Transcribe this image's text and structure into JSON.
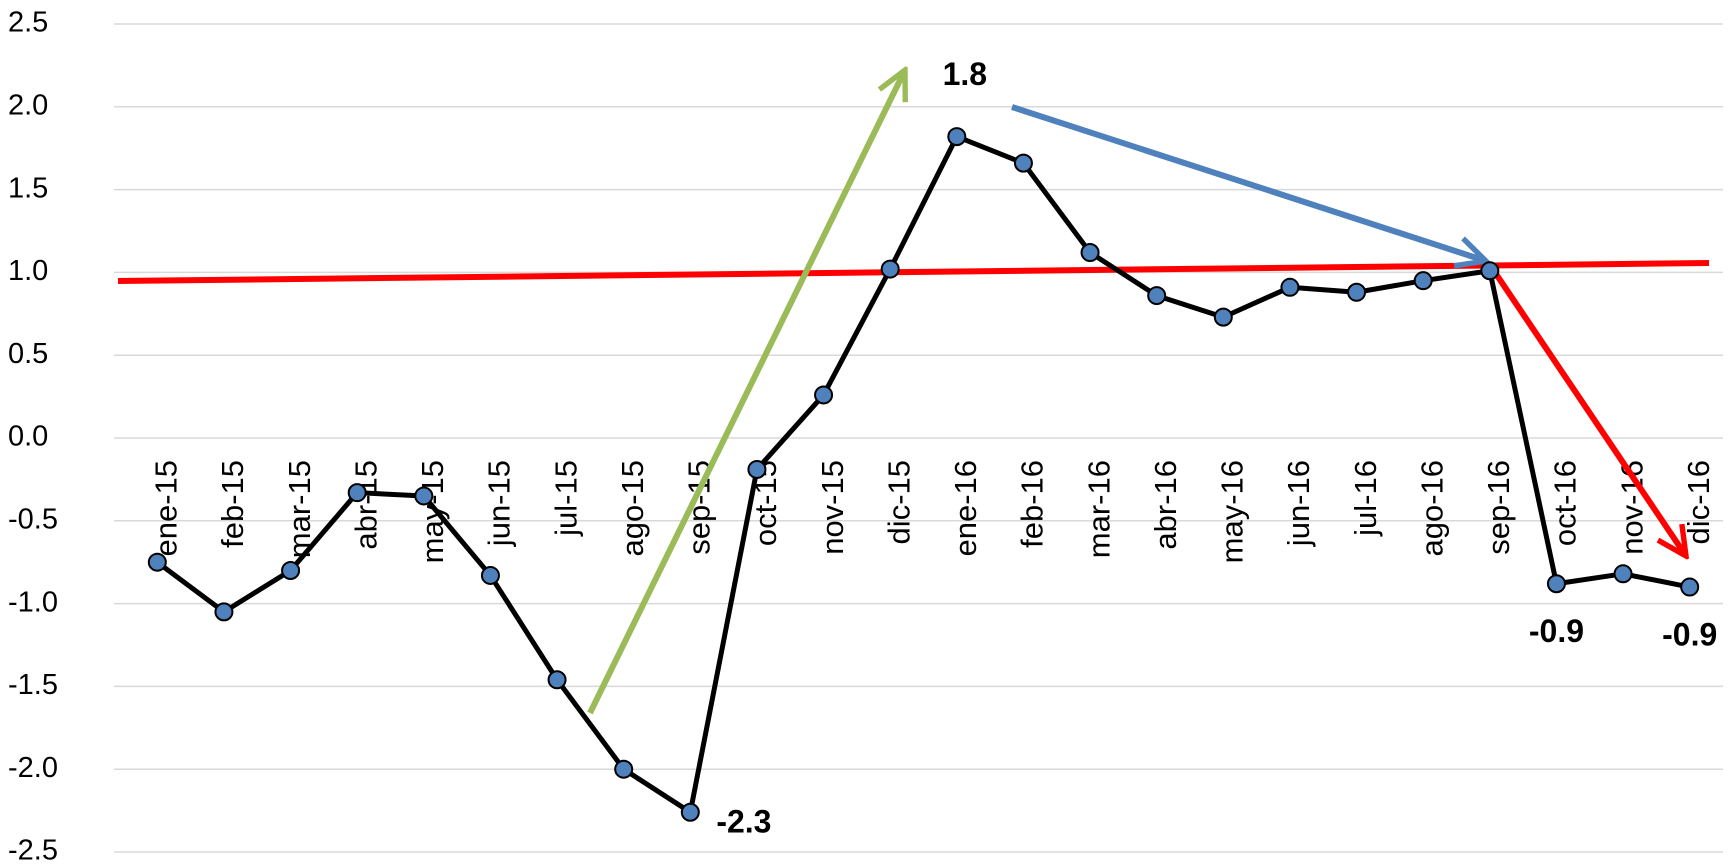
{
  "chart_data": {
    "type": "line",
    "categories": [
      "ene-15",
      "feb-15",
      "mar-15",
      "abr-15",
      "may-15",
      "jun-15",
      "jul-15",
      "ago-15",
      "sep-15",
      "oct-15",
      "nov-15",
      "dic-15",
      "ene-16",
      "feb-16",
      "mar-16",
      "abr-16",
      "may-16",
      "jun-16",
      "jul-16",
      "ago-16",
      "sep-16",
      "oct-16",
      "nov-16",
      "dic-16"
    ],
    "series": [
      {
        "color": "#4f81bd",
        "values": [
          -0.75,
          -1.05,
          -0.8,
          -0.33,
          -0.35,
          -0.83,
          -1.46,
          -2.0,
          -2.26,
          -0.19,
          0.26,
          1.02,
          1.82,
          1.66,
          1.12,
          0.86,
          0.73,
          0.91,
          0.88,
          0.95,
          1.01,
          -0.88,
          -0.82,
          -0.9
        ],
        "value_labels": [
          null,
          null,
          null,
          null,
          null,
          null,
          null,
          null,
          "-2.3",
          null,
          null,
          null,
          "1.8",
          null,
          null,
          null,
          null,
          null,
          null,
          null,
          null,
          "-0.9",
          null,
          "-0.9"
        ]
      }
    ],
    "ylim": [
      -2.5,
      2.5
    ],
    "yticks": [
      2.5,
      {
        "value": 2,
        "label": "2.0"
      },
      1.5,
      {
        "value": 1,
        "label": "1.0"
      },
      0.5,
      {
        "value": 0,
        "label": "0.0"
      },
      -0.5,
      {
        "value": -1,
        "label": "-1.0"
      },
      -1.5,
      {
        "value": -2,
        "label": "-2.0"
      },
      -2.5
    ],
    "grid": true
  }
}
